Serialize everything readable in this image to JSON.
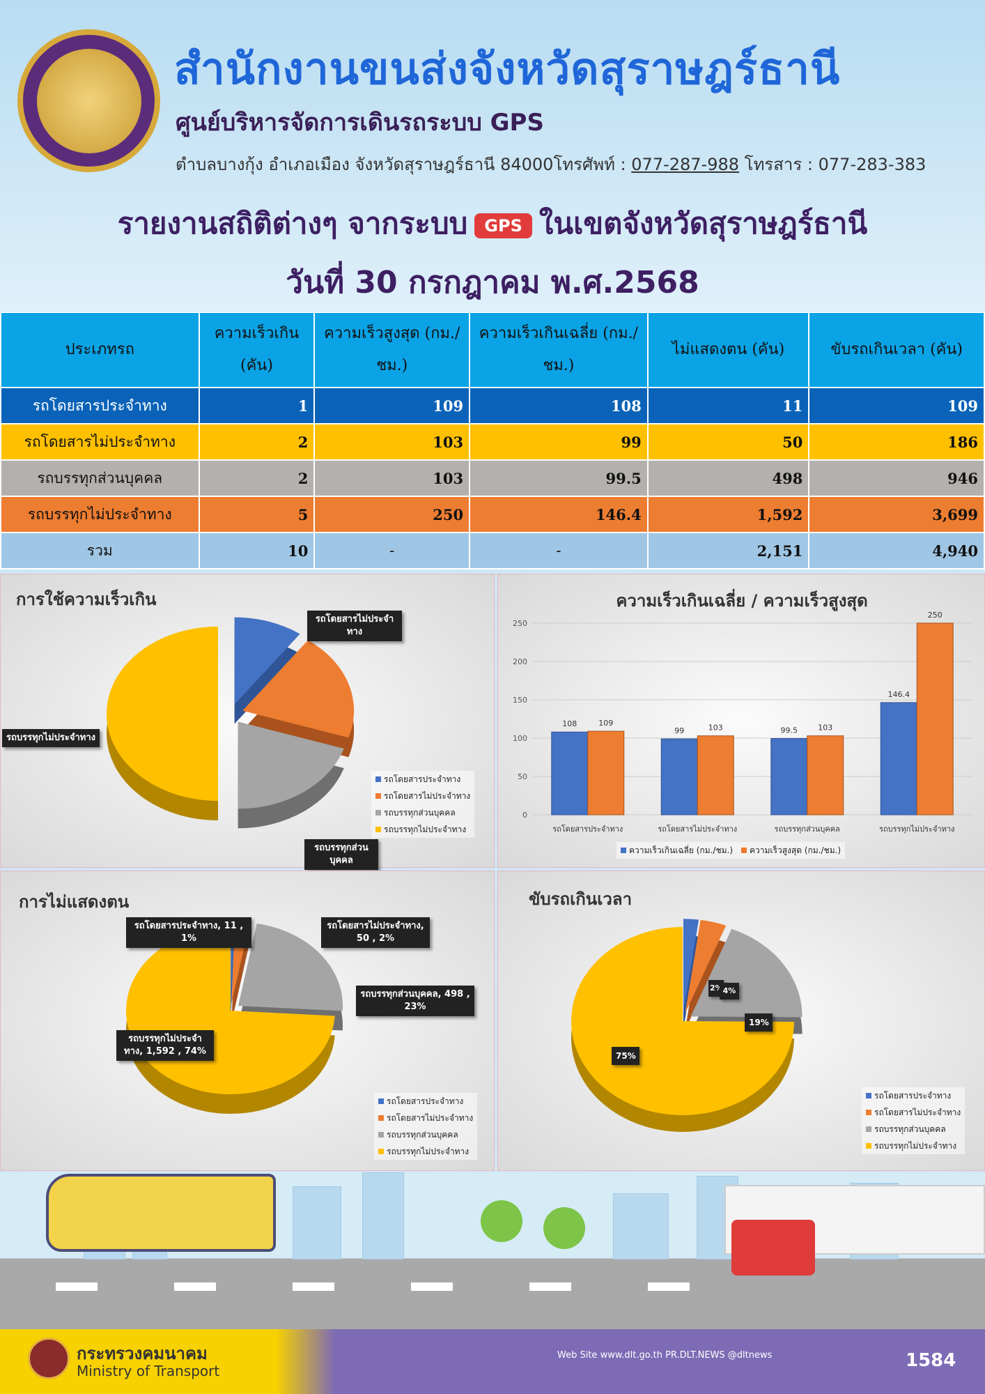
{
  "header": {
    "org_title": "สำนักงานขนส่งจังหวัดสุราษฎร์ธานี",
    "center_title": "ศูนย์บริหารจัดการเดินรถระบบ GPS",
    "address": "ตำบลบางกุ้ง อำเภอเมือง จังหวัดสุราษฎร์ธานี 84000",
    "phone_label": "โทรศัพท์ :",
    "phone": "077-287-988",
    "fax": "โทรสาร : 077-283-383",
    "report_title_a": "รายงานสถิติต่างๆ จากระบบ",
    "gps_badge": "GPS",
    "report_title_b": "ในเขตจังหวัดสุราษฎร์ธานี",
    "date": "วันที่ 30 กรกฎาคม พ.ศ.2568"
  },
  "table": {
    "headers": [
      "ประเภทรถ",
      "ความเร็วเกิน (คัน)",
      "ความเร็วสูงสุด (กม./ชม.)",
      "ความเร็วเกินเฉลี่ย (กม./ชม.)",
      "ไม่แสดงตน (คัน)",
      "ขับรถเกินเวลา (คัน)"
    ],
    "rows": [
      [
        "รถโดยสารประจำทาง",
        "1",
        "109",
        "108",
        "11",
        "109"
      ],
      [
        "รถโดยสารไม่ประจำทาง",
        "2",
        "103",
        "99",
        "50",
        "186"
      ],
      [
        "รถบรรทุกส่วนบุคคล",
        "2",
        "103",
        "99.5",
        "498",
        "946"
      ],
      [
        "รถบรรทุกไม่ประจำทาง",
        "5",
        "250",
        "146.4",
        "1,592",
        "3,699"
      ],
      [
        "รวม",
        "10",
        "-",
        "-",
        "2,151",
        "4,940"
      ]
    ]
  },
  "legend_labels": [
    "รถโดยสารประจำทาง",
    "รถโดยสารไม่ประจำทาง",
    "รถบรรทุกส่วนบุคคล",
    "รถบรรทุกไม่ประจำทาง"
  ],
  "colors": {
    "blue": "#4472c4",
    "orange": "#ed7d31",
    "gray": "#a5a5a5",
    "yellow": "#ffc000"
  },
  "chart_data": [
    {
      "type": "pie",
      "title": "การใช้ความเร็วเกิน",
      "categories": [
        "รถโดยสารประจำทาง",
        "รถโดยสารไม่ประจำทาง",
        "รถบรรทุกส่วนบุคคล",
        "รถบรรทุกไม่ประจำทาง"
      ],
      "values": [
        1,
        2,
        2,
        5
      ],
      "callouts": [
        "รถโดยสารไม่ประจำทาง",
        "รถบรรทุกไม่ประจำทาง",
        "รถบรรทุกส่วนบุคคล"
      ]
    },
    {
      "type": "bar",
      "title": "ความเร็วเกินเฉลี่ย / ความเร็วสูงสุด",
      "categories": [
        "รถโดยสารประจำทาง",
        "รถโดยสารไม่ประจำทาง",
        "รถบรรทุกส่วนบุคคล",
        "รถบรรทุกไม่ประจำทาง"
      ],
      "series": [
        {
          "name": "ความเร็วเกินเฉลี่ย (กม./ชม.)",
          "values": [
            108,
            99,
            99.5,
            146.4
          ]
        },
        {
          "name": "ความเร็วสูงสุด (กม./ชม.)",
          "values": [
            109,
            103,
            103,
            250
          ]
        }
      ],
      "ylim": [
        0,
        250
      ],
      "yticks": [
        0,
        50,
        100,
        150,
        200,
        250
      ]
    },
    {
      "type": "pie",
      "title": "การไม่แสดงตน",
      "categories": [
        "รถโดยสารประจำทาง",
        "รถโดยสารไม่ประจำทาง",
        "รถบรรทุกส่วนบุคคล",
        "รถบรรทุกไม่ประจำทาง"
      ],
      "values": [
        11,
        50,
        498,
        1592
      ],
      "callouts": [
        "รถโดยสารประจำทาง, 11 , 1%",
        "รถโดยสารไม่ประจำทาง, 50 , 2%",
        "รถบรรทุกส่วนบุคคล, 498 , 23%",
        "รถบรรทุกไม่ประจำทาง, 1,592 , 74%"
      ]
    },
    {
      "type": "pie",
      "title": "ขับรถเกินเวลา",
      "categories": [
        "รถโดยสารประจำทาง",
        "รถโดยสารไม่ประจำทาง",
        "รถบรรทุกส่วนบุคคล",
        "รถบรรทุกไม่ประจำทาง"
      ],
      "values": [
        109,
        186,
        946,
        3699
      ],
      "callouts": [
        "2%",
        "4%",
        "19%",
        "75%"
      ]
    }
  ],
  "footer": {
    "ministry_th": "กระทรวงคมนาคม",
    "ministry_en": "Ministry of Transport",
    "links": "Web Site www.dlt.go.th   PR.DLT.NEWS   @dltnews",
    "call_center": "1584"
  }
}
